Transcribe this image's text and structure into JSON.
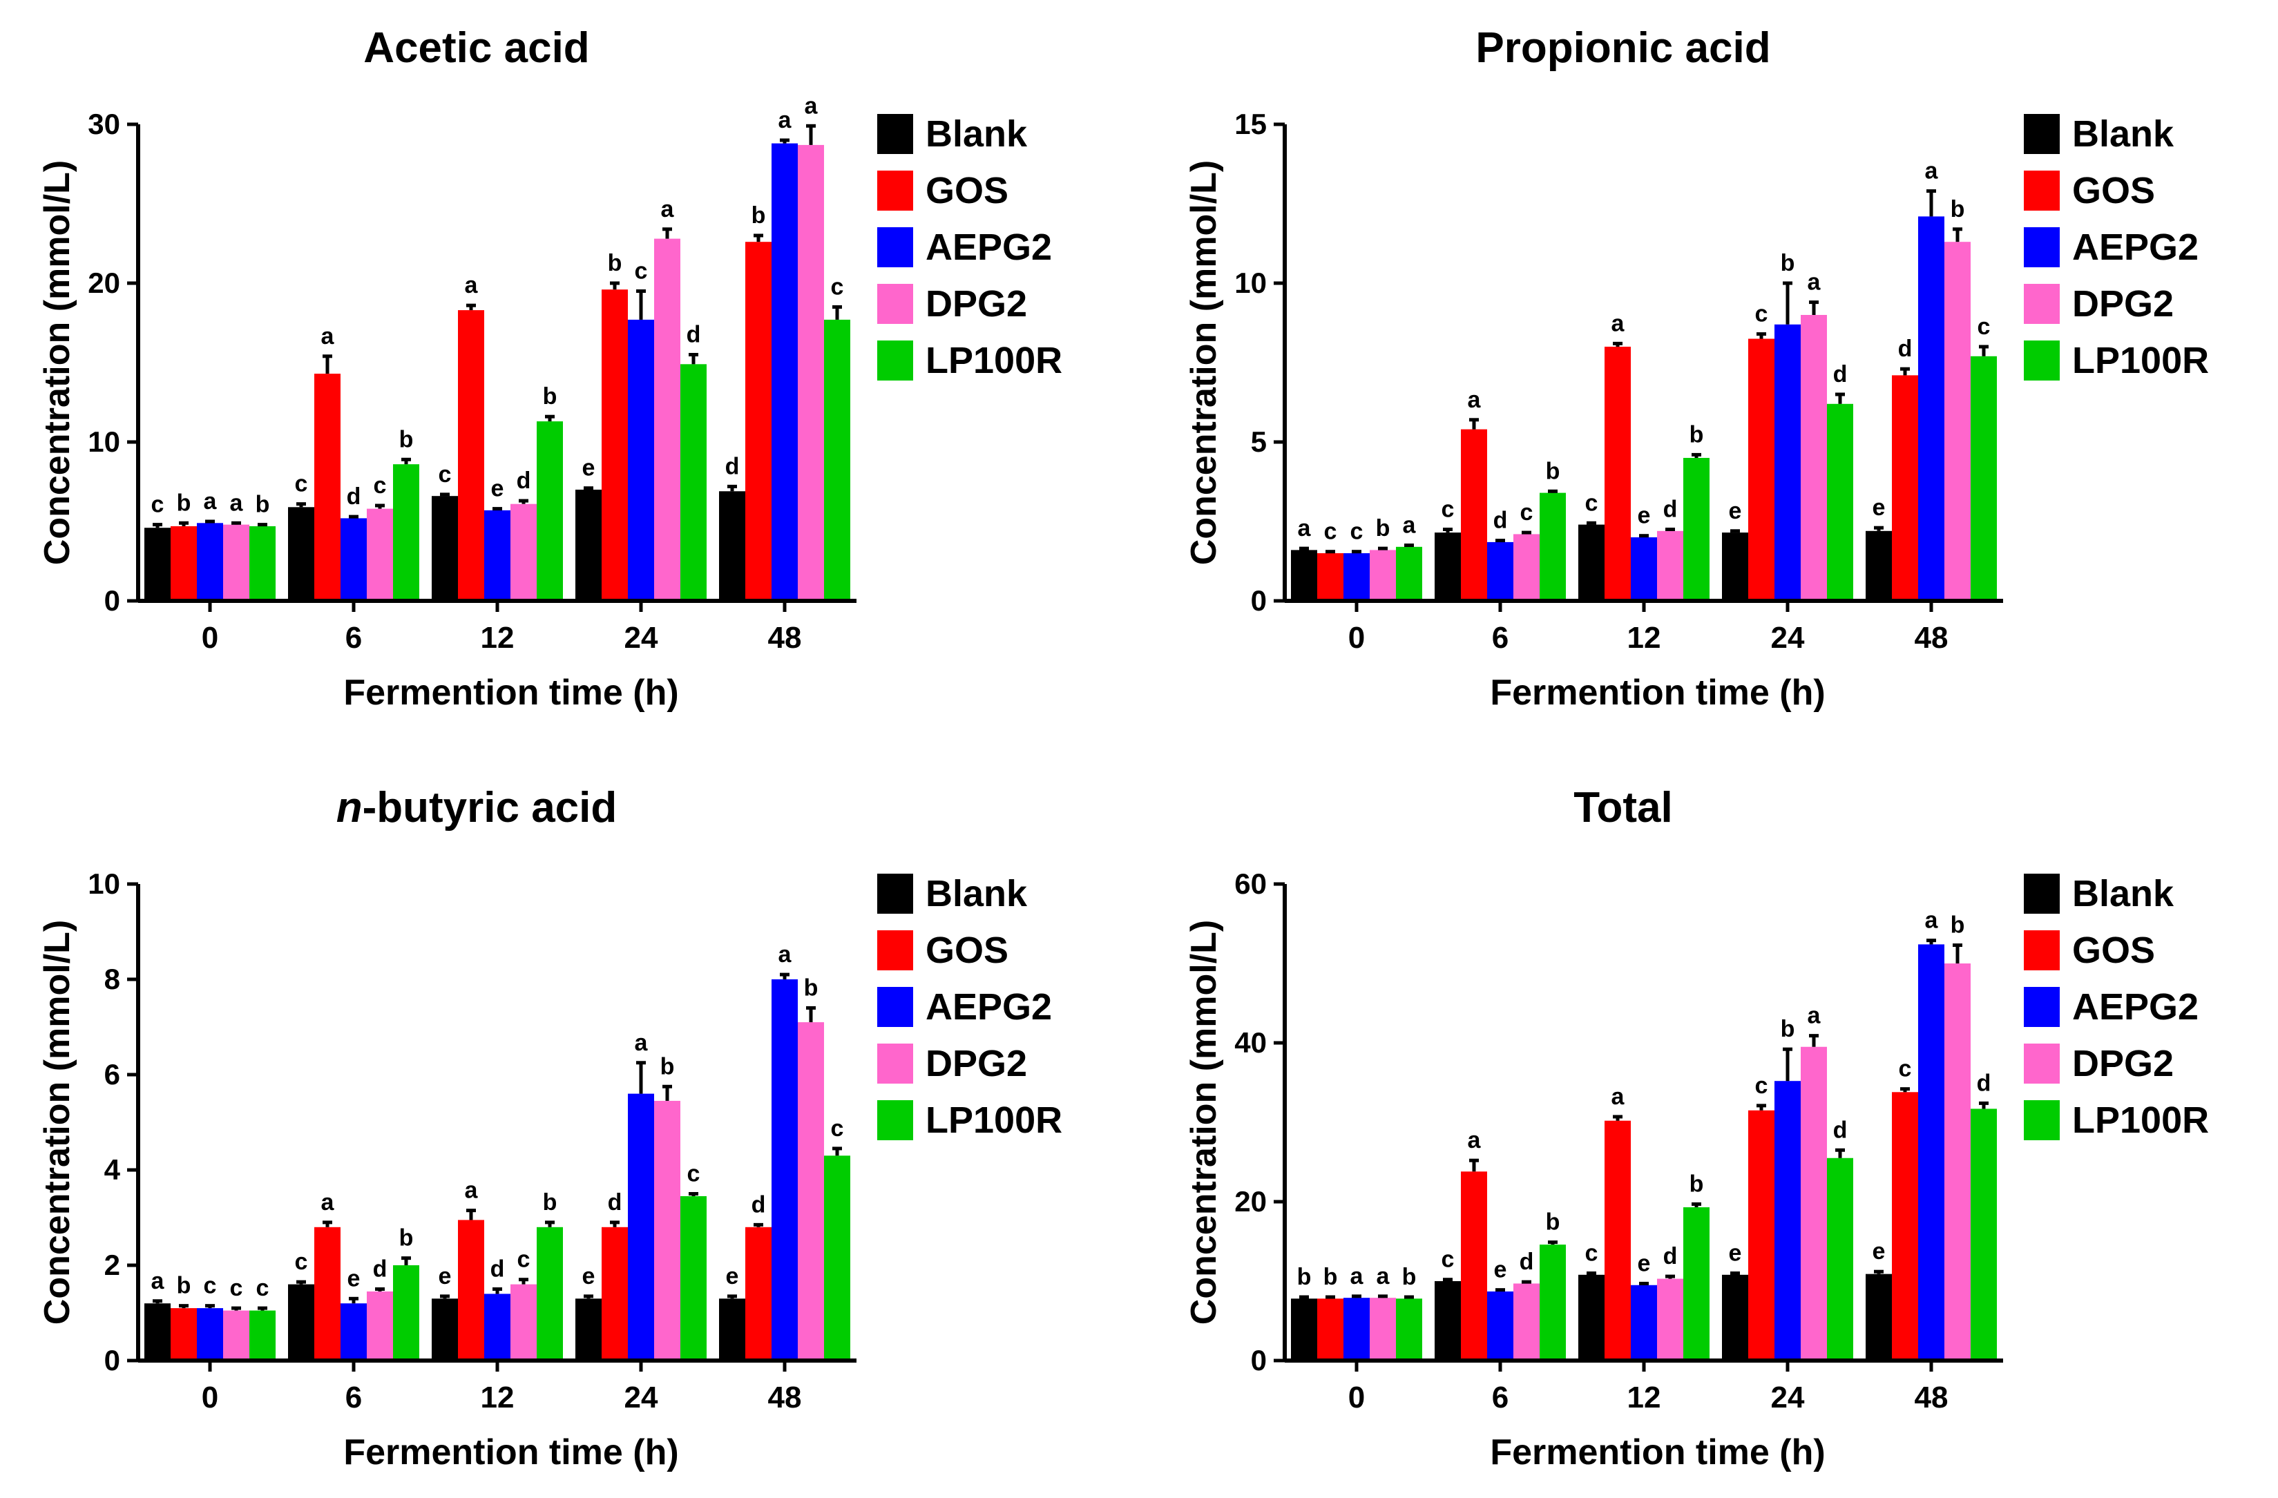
{
  "legend": [
    "Blank",
    "GOS",
    "AEPG2",
    "DPG2",
    "LP100R"
  ],
  "colors": [
    "#000000",
    "#ff0000",
    "#0000ff",
    "#ff66cc",
    "#00cc00"
  ],
  "chart_data": [
    {
      "type": "bar",
      "title": "Acetic acid",
      "title_italic_prefix": "",
      "xlabel": "Fermention time (h)",
      "ylabel": "Concentration (mmol/L)",
      "categories": [
        "0",
        "6",
        "12",
        "24",
        "48"
      ],
      "ylim": [
        0,
        30
      ],
      "yticks": [
        "0",
        "10",
        "20",
        "30"
      ],
      "series": [
        {
          "name": "Blank",
          "values": [
            4.6,
            5.9,
            6.6,
            7.0,
            6.9
          ],
          "errors": [
            0.2,
            0.2,
            0.1,
            0.1,
            0.3
          ],
          "letters": [
            "c",
            "c",
            "c",
            "e",
            "d"
          ]
        },
        {
          "name": "GOS",
          "values": [
            4.7,
            14.3,
            18.3,
            19.6,
            22.6
          ],
          "errors": [
            0.2,
            1.1,
            0.3,
            0.4,
            0.4
          ],
          "letters": [
            "b",
            "a",
            "a",
            "b",
            "b"
          ]
        },
        {
          "name": "AEPG2",
          "values": [
            4.9,
            5.2,
            5.7,
            17.7,
            28.8
          ],
          "errors": [
            0.1,
            0.1,
            0.1,
            1.8,
            0.2
          ],
          "letters": [
            "a",
            "d",
            "e",
            "c",
            "a"
          ]
        },
        {
          "name": "DPG2",
          "values": [
            4.8,
            5.8,
            6.1,
            22.8,
            28.7
          ],
          "errors": [
            0.1,
            0.2,
            0.2,
            0.6,
            1.2
          ],
          "letters": [
            "a",
            "c",
            "d",
            "a",
            "a"
          ]
        },
        {
          "name": "LP100R",
          "values": [
            4.7,
            8.6,
            11.3,
            14.9,
            17.7
          ],
          "errors": [
            0.1,
            0.3,
            0.3,
            0.6,
            0.8
          ],
          "letters": [
            "b",
            "b",
            "b",
            "d",
            "c"
          ]
        }
      ]
    },
    {
      "type": "bar",
      "title": "Propionic acid",
      "title_italic_prefix": "",
      "xlabel": "Fermention time (h)",
      "ylabel": "Concentration (mmol/L)",
      "categories": [
        "0",
        "6",
        "12",
        "24",
        "48"
      ],
      "ylim": [
        0,
        15
      ],
      "yticks": [
        "0",
        "5",
        "10",
        "15"
      ],
      "series": [
        {
          "name": "Blank",
          "values": [
            1.6,
            2.15,
            2.4,
            2.15,
            2.2
          ],
          "errors": [
            0.05,
            0.1,
            0.05,
            0.05,
            0.1
          ],
          "letters": [
            "a",
            "c",
            "c",
            "e",
            "e"
          ]
        },
        {
          "name": "GOS",
          "values": [
            1.5,
            5.4,
            8.0,
            8.25,
            7.1
          ],
          "errors": [
            0.05,
            0.3,
            0.1,
            0.15,
            0.2
          ],
          "letters": [
            "c",
            "a",
            "a",
            "c",
            "d"
          ]
        },
        {
          "name": "AEPG2",
          "values": [
            1.5,
            1.85,
            2.0,
            8.7,
            12.1
          ],
          "errors": [
            0.05,
            0.05,
            0.05,
            1.3,
            0.8
          ],
          "letters": [
            "c",
            "d",
            "e",
            "b",
            "a"
          ]
        },
        {
          "name": "DPG2",
          "values": [
            1.6,
            2.1,
            2.2,
            9.0,
            11.3
          ],
          "errors": [
            0.05,
            0.05,
            0.05,
            0.4,
            0.4
          ],
          "letters": [
            "b",
            "c",
            "d",
            "a",
            "b"
          ]
        },
        {
          "name": "LP100R",
          "values": [
            1.7,
            3.4,
            4.5,
            6.2,
            7.7
          ],
          "errors": [
            0.05,
            0.05,
            0.1,
            0.3,
            0.3
          ],
          "letters": [
            "a",
            "b",
            "b",
            "d",
            "c"
          ]
        }
      ]
    },
    {
      "type": "bar",
      "title": "-butyric acid",
      "title_italic_prefix": "n",
      "xlabel": "Fermention time (h)",
      "ylabel": "Concentration (mmol/L)",
      "categories": [
        "0",
        "6",
        "12",
        "24",
        "48"
      ],
      "ylim": [
        0,
        10
      ],
      "yticks": [
        "0",
        "2",
        "4",
        "6",
        "8",
        "10"
      ],
      "series": [
        {
          "name": "Blank",
          "values": [
            1.2,
            1.6,
            1.3,
            1.3,
            1.3
          ],
          "errors": [
            0.05,
            0.05,
            0.05,
            0.05,
            0.05
          ],
          "letters": [
            "a",
            "c",
            "e",
            "e",
            "e"
          ]
        },
        {
          "name": "GOS",
          "values": [
            1.1,
            2.8,
            2.95,
            2.8,
            2.8
          ],
          "errors": [
            0.05,
            0.1,
            0.2,
            0.1,
            0.05
          ],
          "letters": [
            "b",
            "a",
            "a",
            "d",
            "d"
          ]
        },
        {
          "name": "AEPG2",
          "values": [
            1.1,
            1.2,
            1.4,
            5.6,
            8.0
          ],
          "errors": [
            0.05,
            0.1,
            0.1,
            0.65,
            0.1
          ],
          "letters": [
            "c",
            "e",
            "d",
            "a",
            "a"
          ]
        },
        {
          "name": "DPG2",
          "values": [
            1.05,
            1.45,
            1.6,
            5.45,
            7.1
          ],
          "errors": [
            0.05,
            0.05,
            0.1,
            0.3,
            0.3
          ],
          "letters": [
            "c",
            "d",
            "c",
            "b",
            "b"
          ]
        },
        {
          "name": "LP100R",
          "values": [
            1.05,
            2.0,
            2.8,
            3.45,
            4.3
          ],
          "errors": [
            0.05,
            0.15,
            0.1,
            0.05,
            0.15
          ],
          "letters": [
            "c",
            "b",
            "b",
            "c",
            "c"
          ]
        }
      ]
    },
    {
      "type": "bar",
      "title": "Total",
      "title_italic_prefix": "",
      "xlabel": "Fermention time (h)",
      "ylabel": "Concentration (mmol/L)",
      "categories": [
        "0",
        "6",
        "12",
        "24",
        "48"
      ],
      "ylim": [
        0,
        60
      ],
      "yticks": [
        "0",
        "20",
        "40",
        "60"
      ],
      "series": [
        {
          "name": "Blank",
          "values": [
            7.8,
            10.0,
            10.8,
            10.8,
            10.9
          ],
          "errors": [
            0.2,
            0.2,
            0.2,
            0.2,
            0.3
          ],
          "letters": [
            "b",
            "c",
            "c",
            "e",
            "e"
          ]
        },
        {
          "name": "GOS",
          "values": [
            7.8,
            23.8,
            30.2,
            31.5,
            33.8
          ],
          "errors": [
            0.2,
            1.4,
            0.5,
            0.6,
            0.4
          ],
          "letters": [
            "b",
            "a",
            "a",
            "c",
            "c"
          ]
        },
        {
          "name": "AEPG2",
          "values": [
            7.9,
            8.7,
            9.5,
            35.2,
            52.4
          ],
          "errors": [
            0.2,
            0.2,
            0.2,
            4.0,
            0.5
          ],
          "letters": [
            "a",
            "e",
            "e",
            "b",
            "a"
          ]
        },
        {
          "name": "DPG2",
          "values": [
            7.9,
            9.7,
            10.3,
            39.5,
            50.0
          ],
          "errors": [
            0.2,
            0.2,
            0.3,
            1.4,
            2.3
          ],
          "letters": [
            "a",
            "d",
            "d",
            "a",
            "b"
          ]
        },
        {
          "name": "LP100R",
          "values": [
            7.8,
            14.6,
            19.3,
            25.5,
            31.7
          ],
          "errors": [
            0.2,
            0.3,
            0.4,
            1.0,
            0.7
          ],
          "letters": [
            "b",
            "b",
            "b",
            "d",
            "d"
          ]
        }
      ]
    }
  ]
}
